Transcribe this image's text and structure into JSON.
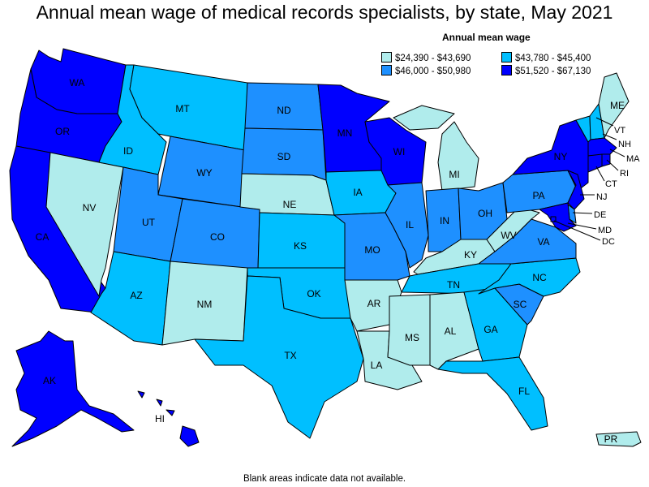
{
  "title": "Annual mean wage of medical records specialists, by state, May 2021",
  "legend": {
    "title": "Annual mean wage",
    "bins": [
      {
        "label": "$24,390 - $43,690",
        "color": "#b0ecec"
      },
      {
        "label": "$43,780 - $45,400",
        "color": "#00bfff"
      },
      {
        "label": "$46,000 - $50,980",
        "color": "#1e90ff"
      },
      {
        "label": "$51,520 - $67,130",
        "color": "#0000ff"
      }
    ]
  },
  "footer": "Blank areas indicate data not available.",
  "states": {
    "WA": {
      "label": "WA",
      "bin": 3
    },
    "OR": {
      "label": "OR",
      "bin": 3
    },
    "CA": {
      "label": "CA",
      "bin": 3
    },
    "NV": {
      "label": "NV",
      "bin": 0
    },
    "ID": {
      "label": "ID",
      "bin": 1
    },
    "MT": {
      "label": "MT",
      "bin": 1
    },
    "WY": {
      "label": "WY",
      "bin": 2
    },
    "UT": {
      "label": "UT",
      "bin": 2
    },
    "AZ": {
      "label": "AZ",
      "bin": 1
    },
    "CO": {
      "label": "CO",
      "bin": 2
    },
    "NM": {
      "label": "NM",
      "bin": 0
    },
    "ND": {
      "label": "ND",
      "bin": 2
    },
    "SD": {
      "label": "SD",
      "bin": 2
    },
    "NE": {
      "label": "NE",
      "bin": 0
    },
    "KS": {
      "label": "KS",
      "bin": 1
    },
    "OK": {
      "label": "OK",
      "bin": 1
    },
    "TX": {
      "label": "TX",
      "bin": 1
    },
    "MN": {
      "label": "MN",
      "bin": 3
    },
    "IA": {
      "label": "IA",
      "bin": 1
    },
    "MO": {
      "label": "MO",
      "bin": 2
    },
    "AR": {
      "label": "AR",
      "bin": 0
    },
    "LA": {
      "label": "LA",
      "bin": 0
    },
    "WI": {
      "label": "WI",
      "bin": 3
    },
    "IL": {
      "label": "IL",
      "bin": 2
    },
    "MI": {
      "label": "MI",
      "bin": 0
    },
    "IN": {
      "label": "IN",
      "bin": 2
    },
    "OH": {
      "label": "OH",
      "bin": 2
    },
    "KY": {
      "label": "KY",
      "bin": 0
    },
    "TN": {
      "label": "TN",
      "bin": 1
    },
    "MS": {
      "label": "MS",
      "bin": 0
    },
    "AL": {
      "label": "AL",
      "bin": 0
    },
    "GA": {
      "label": "GA",
      "bin": 1
    },
    "FL": {
      "label": "FL",
      "bin": 1
    },
    "SC": {
      "label": "SC",
      "bin": 2
    },
    "NC": {
      "label": "NC",
      "bin": 1
    },
    "VA": {
      "label": "VA",
      "bin": 2
    },
    "WV": {
      "label": "WV",
      "bin": 0
    },
    "PA": {
      "label": "PA",
      "bin": 2
    },
    "NY": {
      "label": "NY",
      "bin": 3
    },
    "ME": {
      "label": "ME",
      "bin": 0
    },
    "VT": {
      "label": "VT",
      "bin": 1
    },
    "NH": {
      "label": "NH",
      "bin": 1
    },
    "MA": {
      "label": "MA",
      "bin": 3
    },
    "RI": {
      "label": "RI",
      "bin": 3
    },
    "CT": {
      "label": "CT",
      "bin": 3
    },
    "NJ": {
      "label": "NJ",
      "bin": 3
    },
    "DE": {
      "label": "DE",
      "bin": 2
    },
    "MD": {
      "label": "MD",
      "bin": 3
    },
    "DC": {
      "label": "DC",
      "bin": 3
    },
    "AK": {
      "label": "AK",
      "bin": 3
    },
    "HI": {
      "label": "HI",
      "bin": 3
    },
    "PR": {
      "label": "PR",
      "bin": 0
    }
  }
}
